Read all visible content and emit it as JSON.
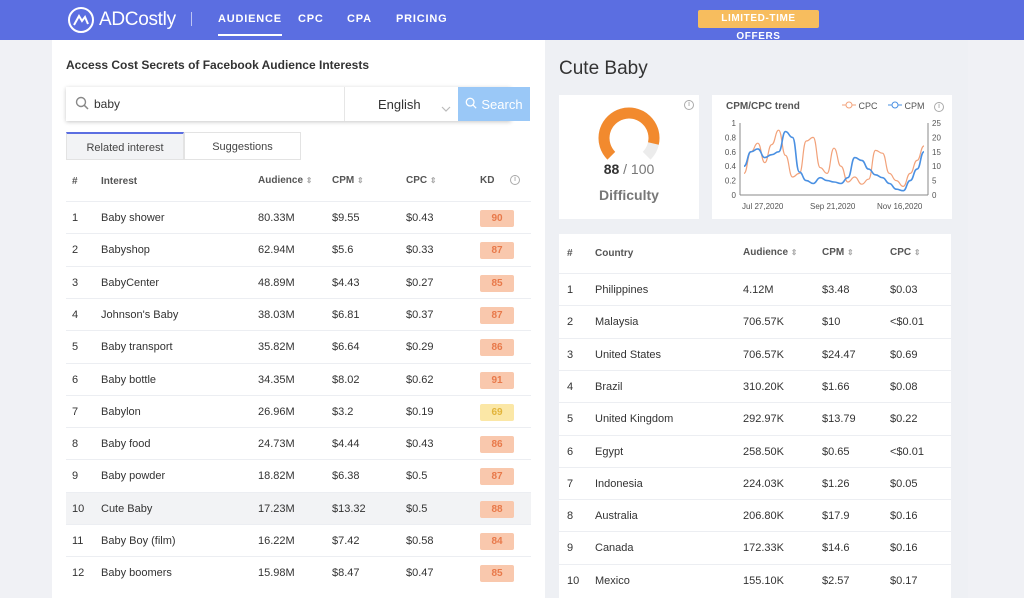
{
  "header": {
    "brand": "ADCostly",
    "nav": [
      "AUDIENCE",
      "CPC",
      "CPA",
      "PRICING"
    ],
    "offer": "LIMITED-TIME OFFERS"
  },
  "left": {
    "title": "Access Cost Secrets of Facebook Audience Interests",
    "search_value": "baby",
    "language": "English",
    "search_button": "Search",
    "tabs": [
      "Related interest",
      "Suggestions"
    ],
    "columns": [
      "#",
      "Interest",
      "Audience",
      "CPM",
      "CPC",
      "KD"
    ],
    "rows": [
      {
        "n": "1",
        "interest": "Baby shower",
        "audience": "80.33M",
        "cpm": "$9.55",
        "cpc": "$0.43",
        "kd": "90",
        "kd_color": "#f9c8ad"
      },
      {
        "n": "2",
        "interest": "Babyshop",
        "audience": "62.94M",
        "cpm": "$5.6",
        "cpc": "$0.33",
        "kd": "87",
        "kd_color": "#f9c8ad"
      },
      {
        "n": "3",
        "interest": "BabyCenter",
        "audience": "48.89M",
        "cpm": "$4.43",
        "cpc": "$0.27",
        "kd": "85",
        "kd_color": "#f9c8ad"
      },
      {
        "n": "4",
        "interest": "Johnson's Baby",
        "audience": "38.03M",
        "cpm": "$6.81",
        "cpc": "$0.37",
        "kd": "87",
        "kd_color": "#f9c8ad"
      },
      {
        "n": "5",
        "interest": "Baby transport",
        "audience": "35.82M",
        "cpm": "$6.64",
        "cpc": "$0.29",
        "kd": "86",
        "kd_color": "#f9c8ad"
      },
      {
        "n": "6",
        "interest": "Baby bottle",
        "audience": "34.35M",
        "cpm": "$8.02",
        "cpc": "$0.62",
        "kd": "91",
        "kd_color": "#f9c8ad"
      },
      {
        "n": "7",
        "interest": "Babylon",
        "audience": "26.96M",
        "cpm": "$3.2",
        "cpc": "$0.19",
        "kd": "69",
        "kd_color": "#fbe7a6"
      },
      {
        "n": "8",
        "interest": "Baby food",
        "audience": "24.73M",
        "cpm": "$4.44",
        "cpc": "$0.43",
        "kd": "86",
        "kd_color": "#f9c8ad"
      },
      {
        "n": "9",
        "interest": "Baby powder",
        "audience": "18.82M",
        "cpm": "$6.38",
        "cpc": "$0.5",
        "kd": "87",
        "kd_color": "#f9c8ad"
      },
      {
        "n": "10",
        "interest": "Cute Baby",
        "audience": "17.23M",
        "cpm": "$13.32",
        "cpc": "$0.5",
        "kd": "88",
        "kd_color": "#f9c8ad"
      },
      {
        "n": "11",
        "interest": "Baby Boy (film)",
        "audience": "16.22M",
        "cpm": "$7.42",
        "cpc": "$0.58",
        "kd": "84",
        "kd_color": "#f9c8ad"
      },
      {
        "n": "12",
        "interest": "Baby boomers",
        "audience": "15.98M",
        "cpm": "$8.47",
        "cpc": "$0.47",
        "kd": "85",
        "kd_color": "#f9c8ad"
      }
    ],
    "selected_row": 10
  },
  "right": {
    "title": "Cute Baby",
    "difficulty": {
      "score": "88",
      "total": "/ 100",
      "label": "Difficulty",
      "value": 88
    },
    "trend": {
      "title": "CPM/CPC trend",
      "legend": [
        "CPC",
        "CPM"
      ]
    },
    "columns": [
      "#",
      "Country",
      "Audience",
      "CPM",
      "CPC"
    ],
    "rows": [
      {
        "n": "1",
        "country": "Philippines",
        "audience": "4.12M",
        "cpm": "$3.48",
        "cpc": "$0.03"
      },
      {
        "n": "2",
        "country": "Malaysia",
        "audience": "706.57K",
        "cpm": "$10",
        "cpc": "<$0.01"
      },
      {
        "n": "3",
        "country": "United States",
        "audience": "706.57K",
        "cpm": "$24.47",
        "cpc": "$0.69"
      },
      {
        "n": "4",
        "country": "Brazil",
        "audience": "310.20K",
        "cpm": "$1.66",
        "cpc": "$0.08"
      },
      {
        "n": "5",
        "country": "United Kingdom",
        "audience": "292.97K",
        "cpm": "$13.79",
        "cpc": "$0.22"
      },
      {
        "n": "6",
        "country": "Egypt",
        "audience": "258.50K",
        "cpm": "$0.65",
        "cpc": "<$0.01"
      },
      {
        "n": "7",
        "country": "Indonesia",
        "audience": "224.03K",
        "cpm": "$1.26",
        "cpc": "$0.05"
      },
      {
        "n": "8",
        "country": "Australia",
        "audience": "206.80K",
        "cpm": "$17.9",
        "cpc": "$0.16"
      },
      {
        "n": "9",
        "country": "Canada",
        "audience": "172.33K",
        "cpm": "$14.6",
        "cpc": "$0.16"
      },
      {
        "n": "10",
        "country": "Mexico",
        "audience": "155.10K",
        "cpm": "$2.57",
        "cpc": "$0.17"
      }
    ]
  },
  "chart_data": {
    "type": "line",
    "title": "CPM/CPC trend",
    "x_ticks": [
      "Jul 27,2020",
      "Sep 21,2020",
      "Nov 16,2020"
    ],
    "y_left_ticks": [
      "1",
      "0.8",
      "0.6",
      "0.4",
      "0.2",
      "0"
    ],
    "y_right_ticks": [
      "25",
      "20",
      "15",
      "10",
      "5",
      "0"
    ],
    "ylim_left": [
      0,
      1
    ],
    "ylim_right": [
      0,
      25
    ],
    "series": [
      {
        "name": "CPC",
        "axis": "left",
        "color": "#f2a27a",
        "values": [
          0.3,
          0.6,
          0.72,
          0.45,
          0.7,
          0.9,
          0.55,
          0.25,
          0.3,
          0.75,
          0.8,
          0.38,
          0.3,
          0.65,
          0.4,
          0.18,
          0.25,
          0.15,
          0.22,
          0.62,
          0.58,
          0.3,
          0.2,
          0.12,
          0.3,
          0.48,
          0.68
        ]
      },
      {
        "name": "CPM",
        "axis": "right",
        "color": "#4a90e2",
        "values": [
          10,
          15,
          16,
          13,
          14,
          15,
          22,
          20,
          8,
          5,
          4,
          6,
          5,
          4.5,
          4,
          6,
          13,
          12,
          9,
          7,
          6,
          4,
          2,
          1.5,
          5,
          9,
          15
        ]
      }
    ]
  }
}
